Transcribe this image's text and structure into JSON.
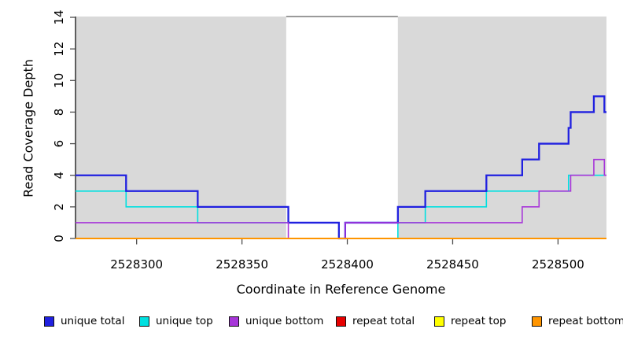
{
  "chart_data": {
    "type": "line",
    "line_style": "step",
    "xlabel": "Coordinate in Reference Genome",
    "ylabel": "Read Coverage Depth",
    "xlim": [
      2528271,
      2528523
    ],
    "ylim": [
      0,
      14
    ],
    "x_ticks": [
      2528300,
      2528350,
      2528400,
      2528450,
      2528500
    ],
    "x_tick_labels": [
      "2528300",
      "2528350",
      "2528400",
      "2528450",
      "2528500"
    ],
    "y_ticks": [
      0,
      2,
      4,
      6,
      8,
      10,
      12,
      14
    ],
    "y_tick_labels": [
      "0",
      "2",
      "4",
      "6",
      "8",
      "10",
      "12",
      "14"
    ],
    "grid": false,
    "legend_position": "bottom",
    "axis_color": "#000000",
    "tick_color": "#4d4d4d",
    "shade_color": "#d9d9d9",
    "shaded_regions": [
      {
        "from": 2528271,
        "to": 2528371
      },
      {
        "from": 2528424,
        "to": 2528523
      }
    ],
    "gap_region": {
      "from": 2528371,
      "to": 2528424,
      "cap_value": 14,
      "cap_color": "#787878"
    },
    "draw_order": [
      1,
      0,
      2,
      3,
      4,
      5
    ],
    "series": [
      {
        "name": "unique total",
        "color": "#2020e0",
        "width": 2.3,
        "steps": [
          [
            2528271,
            4
          ],
          [
            2528295,
            3
          ],
          [
            2528329,
            2
          ],
          [
            2528372,
            1
          ],
          [
            2528396,
            0
          ],
          [
            2528399,
            1
          ],
          [
            2528424,
            2
          ],
          [
            2528437,
            3
          ],
          [
            2528466,
            4
          ],
          [
            2528483,
            5
          ],
          [
            2528491,
            6
          ],
          [
            2528505,
            7
          ],
          [
            2528506,
            8
          ],
          [
            2528517,
            9
          ],
          [
            2528522,
            8
          ]
        ]
      },
      {
        "name": "unique top",
        "color": "#00e0e0",
        "width": 1.6,
        "steps": [
          [
            2528271,
            3
          ],
          [
            2528295,
            2
          ],
          [
            2528329,
            1
          ],
          [
            2528396,
            0
          ],
          [
            2528424,
            1
          ],
          [
            2528437,
            2
          ],
          [
            2528466,
            3
          ],
          [
            2528505,
            4
          ]
        ]
      },
      {
        "name": "unique bottom",
        "color": "#a736d9",
        "width": 1.6,
        "steps": [
          [
            2528271,
            1
          ],
          [
            2528372,
            0
          ],
          [
            2528399,
            1
          ],
          [
            2528483,
            2
          ],
          [
            2528491,
            3
          ],
          [
            2528506,
            4
          ],
          [
            2528517,
            5
          ],
          [
            2528522,
            4
          ]
        ]
      },
      {
        "name": "repeat total",
        "color": "#e60000",
        "width": 1.4,
        "steps": [
          [
            2528271,
            0
          ]
        ]
      },
      {
        "name": "repeat top",
        "color": "#ffff00",
        "width": 1.4,
        "steps": [
          [
            2528271,
            0
          ]
        ]
      },
      {
        "name": "repeat bottom",
        "color": "#ff9500",
        "width": 2.0,
        "steps": [
          [
            2528271,
            0
          ]
        ]
      }
    ]
  }
}
